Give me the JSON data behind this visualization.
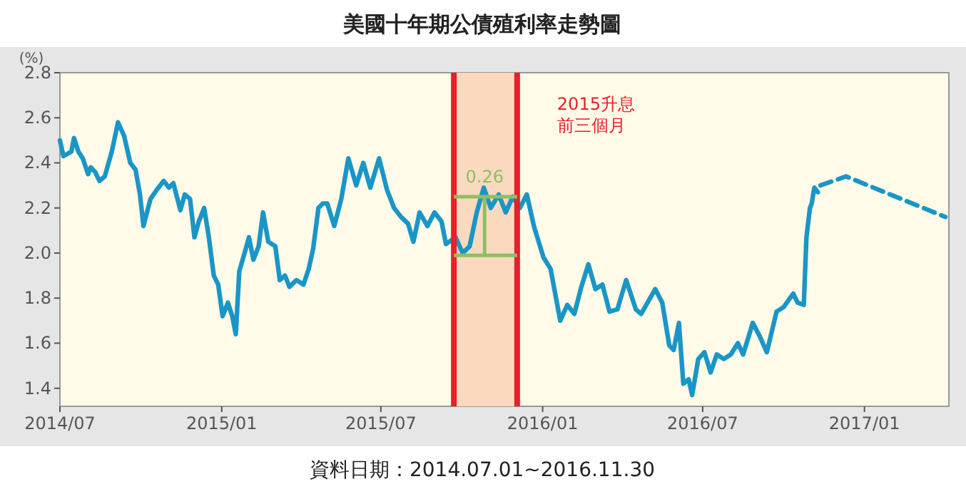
{
  "chart_data": {
    "type": "line",
    "title": "美國十年期公債殖利率走勢圖",
    "ylabel": "(%)",
    "xlim": [
      "2014-07-01",
      "2017-04-07"
    ],
    "ylim": [
      1.32,
      2.8
    ],
    "xticks": [
      {
        "value": "2014-07-01",
        "label": "2014/07"
      },
      {
        "value": "2015-01-01",
        "label": "2015/01"
      },
      {
        "value": "2015-07-01",
        "label": "2015/07"
      },
      {
        "value": "2016-01-01",
        "label": "2016/01"
      },
      {
        "value": "2016-07-01",
        "label": "2016/07"
      },
      {
        "value": "2017-01-01",
        "label": "2017/01"
      }
    ],
    "yticks": [
      {
        "value": 1.4,
        "label": "1.4"
      },
      {
        "value": 1.6,
        "label": "1.6"
      },
      {
        "value": 1.8,
        "label": "1.8"
      },
      {
        "value": 2.0,
        "label": "2.0"
      },
      {
        "value": 2.2,
        "label": "2.2"
      },
      {
        "value": 2.4,
        "label": "2.4"
      },
      {
        "value": 2.6,
        "label": "2.6"
      },
      {
        "value": 2.8,
        "label": "2.8"
      }
    ],
    "marker": "none",
    "series": [
      {
        "color": "#1a96c6",
        "line_style": "solid",
        "x": [
          "2014-07-01",
          "2014-07-05",
          "2014-07-14",
          "2014-07-17",
          "2014-07-22",
          "2014-07-27",
          "2014-08-02",
          "2014-08-05",
          "2014-08-10",
          "2014-08-15",
          "2014-08-21",
          "2014-08-29",
          "2014-09-05",
          "2014-09-12",
          "2014-09-19",
          "2014-09-25",
          "2014-09-30",
          "2014-10-04",
          "2014-10-12",
          "2014-10-19",
          "2014-10-27",
          "2014-11-02",
          "2014-11-07",
          "2014-11-15",
          "2014-11-20",
          "2014-11-26",
          "2014-12-01",
          "2014-12-06",
          "2014-12-12",
          "2014-12-17",
          "2014-12-23",
          "2014-12-28",
          "2015-01-02",
          "2015-01-08",
          "2015-01-13",
          "2015-01-17",
          "2015-01-21",
          "2015-01-27",
          "2015-02-01",
          "2015-02-06",
          "2015-02-12",
          "2015-02-17",
          "2015-02-23",
          "2015-03-03",
          "2015-03-08",
          "2015-03-14",
          "2015-03-19",
          "2015-03-27",
          "2015-04-04",
          "2015-04-10",
          "2015-04-15",
          "2015-04-21",
          "2015-04-26",
          "2015-05-01",
          "2015-05-09",
          "2015-05-17",
          "2015-05-25",
          "2015-06-03",
          "2015-06-11",
          "2015-06-19",
          "2015-06-29",
          "2015-07-08",
          "2015-07-16",
          "2015-07-24",
          "2015-08-01",
          "2015-08-07",
          "2015-08-14",
          "2015-08-23",
          "2015-08-31",
          "2015-09-08",
          "2015-09-13",
          "2015-09-24",
          "2015-10-02",
          "2015-10-10",
          "2015-10-18",
          "2015-10-26",
          "2015-11-03",
          "2015-11-12",
          "2015-11-20",
          "2015-11-28",
          "2015-12-06",
          "2015-12-14",
          "2015-12-22",
          "2016-01-02",
          "2016-01-10",
          "2016-01-21",
          "2016-01-29",
          "2016-02-06",
          "2016-02-14",
          "2016-02-22",
          "2016-03-01",
          "2016-03-09",
          "2016-03-17",
          "2016-03-26",
          "2016-04-05",
          "2016-04-16",
          "2016-04-22",
          "2016-05-08",
          "2016-05-16",
          "2016-05-24",
          "2016-05-29",
          "2016-06-04",
          "2016-06-09",
          "2016-06-15",
          "2016-06-19",
          "2016-06-26",
          "2016-07-03",
          "2016-07-10",
          "2016-07-17",
          "2016-07-25",
          "2016-08-02",
          "2016-08-10",
          "2016-08-16",
          "2016-08-27",
          "2016-09-04",
          "2016-09-12",
          "2016-09-23",
          "2016-10-01",
          "2016-10-12",
          "2016-10-17",
          "2016-10-24",
          "2016-10-27",
          "2016-10-31",
          "2016-11-02",
          "2016-11-05",
          "2016-11-09"
        ],
        "values": [
          2.5,
          2.43,
          2.45,
          2.51,
          2.45,
          2.42,
          2.35,
          2.38,
          2.36,
          2.32,
          2.34,
          2.45,
          2.58,
          2.52,
          2.4,
          2.37,
          2.26,
          2.12,
          2.24,
          2.28,
          2.32,
          2.29,
          2.31,
          2.19,
          2.26,
          2.24,
          2.07,
          2.14,
          2.2,
          2.08,
          1.9,
          1.86,
          1.72,
          1.78,
          1.72,
          1.64,
          1.92,
          2.0,
          2.07,
          1.97,
          2.03,
          2.18,
          2.05,
          2.03,
          1.88,
          1.9,
          1.85,
          1.88,
          1.86,
          1.93,
          2.02,
          2.2,
          2.22,
          2.22,
          2.12,
          2.24,
          2.42,
          2.3,
          2.4,
          2.29,
          2.42,
          2.28,
          2.2,
          2.16,
          2.13,
          2.05,
          2.18,
          2.12,
          2.18,
          2.14,
          2.04,
          2.07,
          2.0,
          2.03,
          2.18,
          2.29,
          2.2,
          2.26,
          2.18,
          2.25,
          2.2,
          2.26,
          2.12,
          1.98,
          1.93,
          1.7,
          1.77,
          1.73,
          1.85,
          1.95,
          1.84,
          1.86,
          1.74,
          1.75,
          1.88,
          1.75,
          1.73,
          1.84,
          1.78,
          1.59,
          1.57,
          1.69,
          1.42,
          1.44,
          1.37,
          1.53,
          1.56,
          1.47,
          1.55,
          1.53,
          1.55,
          1.6,
          1.55,
          1.69,
          1.63,
          1.56,
          1.74,
          1.76,
          1.82,
          1.78,
          1.77,
          2.07,
          2.2,
          2.22,
          2.29,
          2.27
        ]
      },
      {
        "color": "#1a96c6",
        "line_style": "dashed",
        "x": [
          "2016-11-12",
          "2016-12-11",
          "2017-04-03"
        ],
        "values": [
          2.3,
          2.34,
          2.16
        ]
      }
    ],
    "bands": [
      {
        "axis": "x",
        "from": "2015-09-22",
        "to": "2015-12-03",
        "color": "#fbd9bf",
        "label": "2015升息前三個月"
      }
    ],
    "ref_lines": [
      {
        "axis": "x",
        "value": "2015-09-22",
        "color": "#e8202a"
      },
      {
        "axis": "x",
        "value": "2015-12-03",
        "color": "#e8202a"
      }
    ],
    "annotations": [
      {
        "text": "0.26",
        "x": "2015-10-27",
        "y": 2.25
      },
      "資料日期：2014.07.01~2016.11.30"
    ]
  }
}
